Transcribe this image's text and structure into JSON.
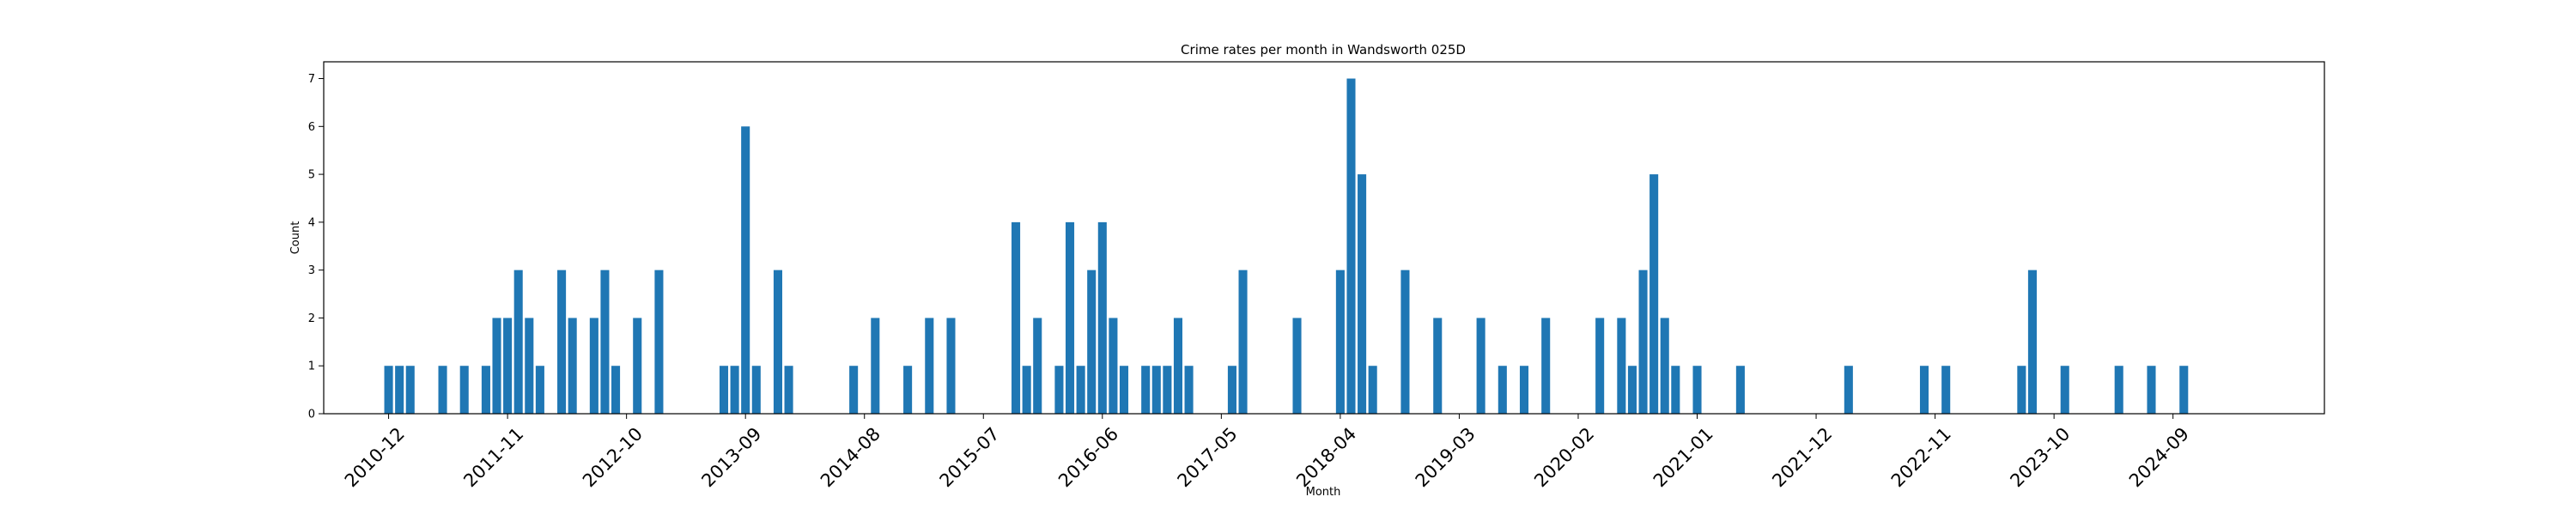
{
  "chart_data": {
    "type": "bar",
    "title": "Crime rates per month in Wandsworth 025D",
    "xlabel": "Month",
    "ylabel": "Count",
    "ylim": [
      0,
      7.35
    ],
    "yticks": [
      0,
      1,
      2,
      3,
      4,
      5,
      6,
      7
    ],
    "xlim": [
      "2010-06",
      "2025-11"
    ],
    "xticks": [
      "2010-12",
      "2011-11",
      "2012-10",
      "2013-09",
      "2014-08",
      "2015-07",
      "2016-06",
      "2017-05",
      "2018-04",
      "2019-03",
      "2020-02",
      "2021-01",
      "2021-12",
      "2022-11",
      "2023-10",
      "2024-09"
    ],
    "grid": false,
    "color": "#1f77b4",
    "x": [
      "2010-12",
      "2011-01",
      "2011-02",
      "2011-05",
      "2011-07",
      "2011-09",
      "2011-10",
      "2011-11",
      "2011-12",
      "2012-01",
      "2012-02",
      "2012-04",
      "2012-05",
      "2012-07",
      "2012-08",
      "2012-09",
      "2012-11",
      "2013-01",
      "2013-07",
      "2013-08",
      "2013-09",
      "2013-10",
      "2013-12",
      "2014-01",
      "2014-07",
      "2014-09",
      "2014-12",
      "2015-02",
      "2015-04",
      "2015-10",
      "2015-11",
      "2015-12",
      "2016-02",
      "2016-03",
      "2016-04",
      "2016-05",
      "2016-06",
      "2016-07",
      "2016-08",
      "2016-10",
      "2016-11",
      "2016-12",
      "2017-01",
      "2017-02",
      "2017-06",
      "2017-07",
      "2017-12",
      "2018-04",
      "2018-05",
      "2018-06",
      "2018-07",
      "2018-10",
      "2019-01",
      "2019-05",
      "2019-07",
      "2019-09",
      "2019-11",
      "2020-04",
      "2020-06",
      "2020-07",
      "2020-08",
      "2020-09",
      "2020-10",
      "2020-11",
      "2021-01",
      "2021-05",
      "2022-03",
      "2022-10",
      "2022-12",
      "2023-07",
      "2023-08",
      "2023-11",
      "2024-04",
      "2024-07",
      "2024-10"
    ],
    "values": [
      1,
      1,
      1,
      1,
      1,
      1,
      2,
      2,
      3,
      2,
      1,
      3,
      2,
      2,
      3,
      1,
      2,
      3,
      1,
      1,
      6,
      1,
      3,
      1,
      1,
      2,
      1,
      2,
      2,
      4,
      1,
      2,
      1,
      4,
      1,
      3,
      4,
      2,
      1,
      1,
      1,
      1,
      2,
      1,
      1,
      3,
      2,
      3,
      7,
      5,
      1,
      3,
      2,
      2,
      1,
      1,
      2,
      2,
      2,
      1,
      3,
      5,
      2,
      1,
      1,
      1,
      1,
      1,
      1,
      1,
      3,
      1,
      1,
      1,
      1
    ]
  }
}
